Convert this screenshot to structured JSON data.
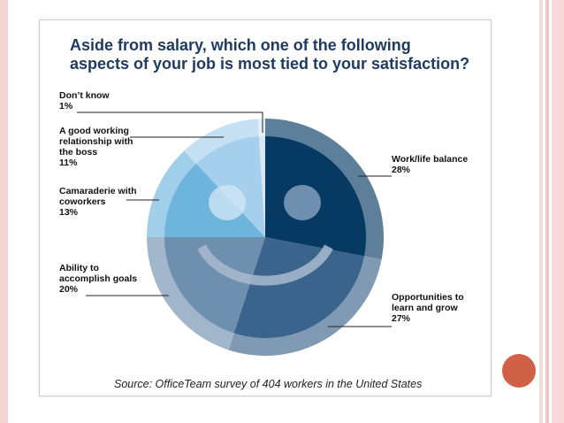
{
  "slide": {
    "title_lines": [
      "Aside from salary, which one of the following",
      "aspects of your job is most tied to your satisfaction?"
    ],
    "source": "Source: OfficeTeam survey of 404 workers in the United States"
  },
  "colors": {
    "stripe_left": "#f1c9c9",
    "stripe_right": "#f1c9c9",
    "accent_dot": "#d06046",
    "title": "#1f3b60"
  },
  "chart_data": {
    "type": "pie",
    "title": "Aside from salary, which one of the following aspects of your job is most tied to your satisfaction?",
    "slices": [
      {
        "label": "Work/life balance",
        "value": 28,
        "display": "28%",
        "label_lines": [
          "Work/life balance",
          "28%"
        ],
        "color": "#073a63"
      },
      {
        "label": "Opportunities to learn and grow",
        "value": 27,
        "display": "27%",
        "label_lines": [
          "Opportunities to",
          "learn and grow",
          "27%"
        ],
        "color": "#3b648c"
      },
      {
        "label": "Ability to accomplish goals",
        "value": 20,
        "display": "20%",
        "label_lines": [
          "Ability to",
          "accomplish goals",
          "20%"
        ],
        "color": "#6e8fae"
      },
      {
        "label": "Camaraderie with coworkers",
        "value": 13,
        "display": "13%",
        "label_lines": [
          "Camaraderie with",
          "coworkers",
          "13%"
        ],
        "color": "#6eb5de"
      },
      {
        "label": "A good working relationship with the boss",
        "value": 11,
        "display": "11%",
        "label_lines": [
          "A good working",
          "relationship with",
          "the boss",
          "11%"
        ],
        "color": "#a5cfec"
      },
      {
        "label": "Don't know",
        "value": 1,
        "display": "1%",
        "label_lines": [
          "Don’t know",
          "1%"
        ],
        "color": "#d6e8f5"
      }
    ],
    "source": "Source: OfficeTeam survey of 404 workers in the United States"
  }
}
